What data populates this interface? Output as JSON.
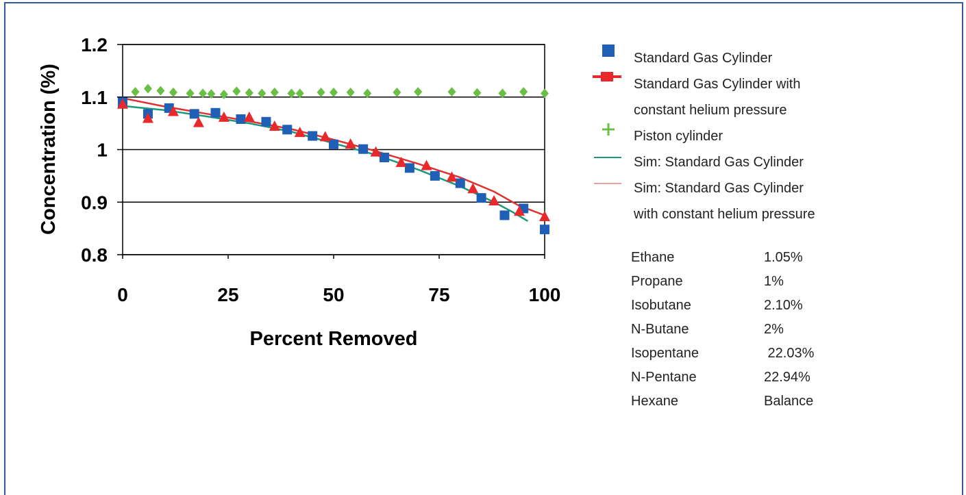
{
  "chart_data": {
    "type": "scatter",
    "title": "",
    "xlabel": "Percent Removed",
    "ylabel": "Concentration (%)",
    "xlim": [
      0,
      100
    ],
    "ylim": [
      0.8,
      1.2
    ],
    "xticks": [
      "0",
      "25",
      "50",
      "75",
      "100"
    ],
    "yticks": [
      "0.8",
      "0.9",
      "1",
      "1.1",
      "1.2"
    ],
    "grid": "horizontal",
    "legend_position": "right",
    "series": [
      {
        "name": "Standard Gas Cylinder",
        "marker": "square",
        "color": "#1f5fb5",
        "points": [
          [
            0,
            1.09
          ],
          [
            6,
            1.068
          ],
          [
            11,
            1.079
          ],
          [
            17,
            1.068
          ],
          [
            22,
            1.07
          ],
          [
            28,
            1.058
          ],
          [
            34,
            1.053
          ],
          [
            39,
            1.038
          ],
          [
            45,
            1.026
          ],
          [
            50,
            1.01
          ],
          [
            57,
            1.001
          ],
          [
            62,
            0.985
          ],
          [
            68,
            0.965
          ],
          [
            74,
            0.95
          ],
          [
            80,
            0.936
          ],
          [
            85,
            0.908
          ],
          [
            90.5,
            0.875
          ],
          [
            95,
            0.888
          ],
          [
            100,
            0.848
          ]
        ]
      },
      {
        "name": "Standard Gas Cylinder with constant helium pressure",
        "marker": "triangle",
        "color": "#e8282a",
        "points": [
          [
            0,
            1.087
          ],
          [
            6,
            1.06
          ],
          [
            12,
            1.073
          ],
          [
            18,
            1.052
          ],
          [
            24,
            1.062
          ],
          [
            30,
            1.062
          ],
          [
            36,
            1.045
          ],
          [
            42,
            1.033
          ],
          [
            48,
            1.025
          ],
          [
            54,
            1.011
          ],
          [
            60,
            0.996
          ],
          [
            66,
            0.976
          ],
          [
            72,
            0.97
          ],
          [
            78,
            0.948
          ],
          [
            83,
            0.926
          ],
          [
            88,
            0.903
          ],
          [
            94,
            0.883
          ],
          [
            100,
            0.873
          ]
        ]
      },
      {
        "name": "Piston cylinder",
        "marker": "diamond",
        "color": "#6abf45",
        "points": [
          [
            3,
            1.11
          ],
          [
            6,
            1.116
          ],
          [
            9,
            1.112
          ],
          [
            12,
            1.109
          ],
          [
            16,
            1.107
          ],
          [
            19,
            1.107
          ],
          [
            21,
            1.106
          ],
          [
            24,
            1.105
          ],
          [
            27,
            1.111
          ],
          [
            30,
            1.108
          ],
          [
            33,
            1.107
          ],
          [
            36,
            1.109
          ],
          [
            40,
            1.107
          ],
          [
            42,
            1.107
          ],
          [
            47,
            1.109
          ],
          [
            50,
            1.109
          ],
          [
            54,
            1.109
          ],
          [
            58,
            1.107
          ],
          [
            65,
            1.109
          ],
          [
            70,
            1.11
          ],
          [
            78,
            1.11
          ],
          [
            84,
            1.108
          ],
          [
            90,
            1.107
          ],
          [
            95,
            1.11
          ],
          [
            100,
            1.107
          ]
        ]
      },
      {
        "name": "Sim: Standard Gas Cylinder",
        "type": "line",
        "color": "#1a9a7a",
        "points": [
          [
            0,
            1.083
          ],
          [
            10,
            1.075
          ],
          [
            20,
            1.063
          ],
          [
            30,
            1.05
          ],
          [
            40,
            1.034
          ],
          [
            50,
            1.012
          ],
          [
            60,
            0.99
          ],
          [
            70,
            0.962
          ],
          [
            80,
            0.93
          ],
          [
            88,
            0.9
          ],
          [
            92,
            0.883
          ],
          [
            96,
            0.864
          ]
        ]
      },
      {
        "name": "Sim: Standard Gas Cylinder with constant helium pressure",
        "type": "line",
        "color": "#e03030",
        "points": [
          [
            0,
            1.098
          ],
          [
            10,
            1.082
          ],
          [
            20,
            1.068
          ],
          [
            30,
            1.054
          ],
          [
            40,
            1.039
          ],
          [
            50,
            1.019
          ],
          [
            60,
            0.997
          ],
          [
            70,
            0.973
          ],
          [
            80,
            0.947
          ],
          [
            88,
            0.92
          ],
          [
            94,
            0.893
          ],
          [
            100,
            0.875
          ]
        ]
      }
    ]
  },
  "legend": [
    {
      "label": "Standard Gas Cylinder",
      "symbol": "square",
      "color": "#1f5fb5"
    },
    {
      "label": "Standard Gas Cylinder with",
      "label2": "constant helium pressure",
      "symbol": "triangle",
      "color": "#e8282a"
    },
    {
      "label": "Piston cylinder",
      "symbol": "plus",
      "color": "#6abf45"
    },
    {
      "label": "Sim: Standard Gas Cylinder",
      "symbol": "line",
      "color": "#1a9a7a"
    },
    {
      "label": "Sim: Standard Gas Cylinder",
      "label2": "with constant helium pressure",
      "symbol": "line",
      "color": "#e8a0a0"
    }
  ],
  "composition": [
    {
      "name": "Ethane",
      "value": "1.05%"
    },
    {
      "name": "Propane",
      "value": "1%"
    },
    {
      "name": "Isobutane",
      "value": "2.10%"
    },
    {
      "name": "N-Butane",
      "value": "2%"
    },
    {
      "name": "Isopentane",
      "value": " 22.03%"
    },
    {
      "name": "N-Pentane",
      "value": "22.94%"
    },
    {
      "name": "Hexane",
      "value": "Balance"
    }
  ]
}
